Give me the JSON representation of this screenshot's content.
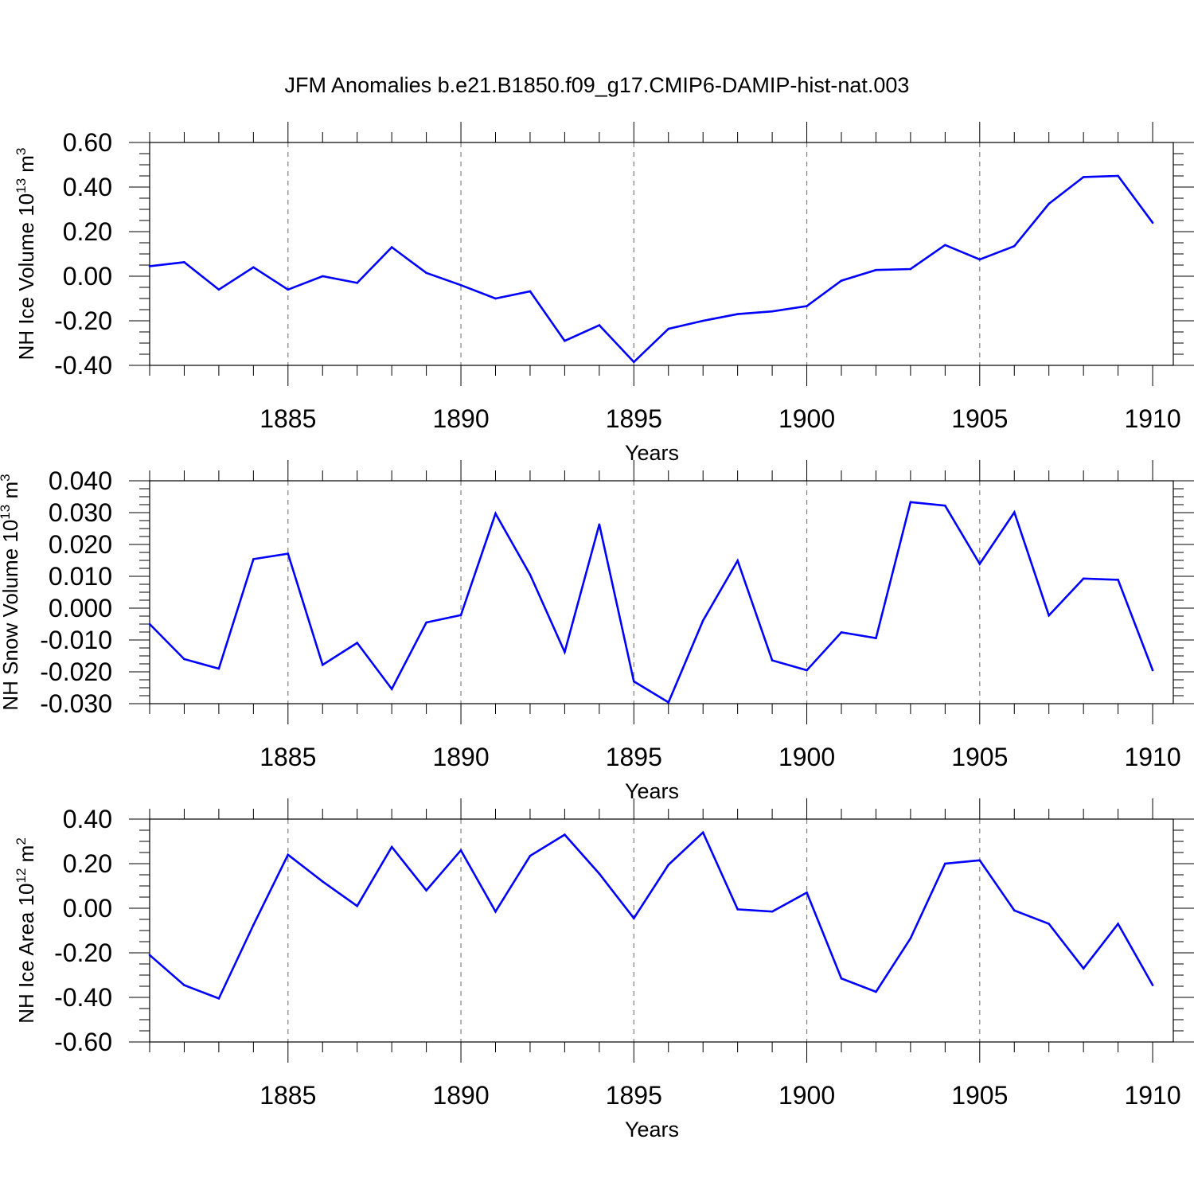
{
  "title": "JFM Anomalies b.e21.B1850.f09_g17.CMIP6-DAMIP-hist-nat.003",
  "colors": {
    "line": "#0000ff",
    "axis": "#000000",
    "grid": "#808080"
  },
  "chart_data": [
    {
      "type": "line",
      "ylabel": {
        "main": "NH Ice Volume 10",
        "exponent": "13",
        "unit": " m",
        "unit_exponent": "3"
      },
      "xlabel": "Years",
      "xlim": [
        1881,
        1910
      ],
      "ylim": [
        -0.4,
        0.6
      ],
      "yticks": [
        -0.4,
        -0.2,
        0.0,
        0.2,
        0.4,
        0.6
      ],
      "ytick_labels": [
        "-0.40",
        "-0.20",
        "0.00",
        "0.20",
        "0.40",
        "0.60"
      ],
      "xticks": [
        1885,
        1890,
        1895,
        1900,
        1905,
        1910
      ],
      "xtick_labels": [
        "1885",
        "1890",
        "1895",
        "1900",
        "1905",
        "1910"
      ],
      "grid": "vertical dashed at major x ticks",
      "x": [
        1881,
        1882,
        1883,
        1884,
        1885,
        1886,
        1887,
        1888,
        1889,
        1890,
        1891,
        1892,
        1893,
        1894,
        1895,
        1896,
        1897,
        1898,
        1899,
        1900,
        1901,
        1902,
        1903,
        1904,
        1905,
        1906,
        1907,
        1908,
        1909,
        1910
      ],
      "values": [
        0.045,
        0.063,
        -0.06,
        0.04,
        -0.06,
        0.0,
        -0.03,
        0.13,
        0.015,
        -0.04,
        -0.1,
        -0.068,
        -0.29,
        -0.22,
        -0.385,
        -0.236,
        -0.2,
        -0.17,
        -0.158,
        -0.134,
        -0.02,
        0.028,
        0.032,
        0.14,
        0.075,
        0.135,
        0.325,
        0.445,
        0.45,
        0.24
      ]
    },
    {
      "type": "line",
      "ylabel": {
        "main": "NH Snow Volume 10",
        "exponent": "13",
        "unit": " m",
        "unit_exponent": "3"
      },
      "xlabel": "Years",
      "xlim": [
        1881,
        1910
      ],
      "ylim": [
        -0.03,
        0.04
      ],
      "yticks": [
        -0.03,
        -0.02,
        -0.01,
        0.0,
        0.01,
        0.02,
        0.03,
        0.04
      ],
      "ytick_labels": [
        "-0.030",
        "-0.020",
        "-0.010",
        "0.000",
        "0.010",
        "0.020",
        "0.030",
        "0.040"
      ],
      "xticks": [
        1885,
        1890,
        1895,
        1900,
        1905,
        1910
      ],
      "xtick_labels": [
        "1885",
        "1890",
        "1895",
        "1900",
        "1905",
        "1910"
      ],
      "grid": "vertical dashed at major x ticks",
      "x": [
        1881,
        1882,
        1883,
        1884,
        1885,
        1886,
        1887,
        1888,
        1889,
        1890,
        1891,
        1892,
        1893,
        1894,
        1895,
        1896,
        1897,
        1898,
        1899,
        1900,
        1901,
        1902,
        1903,
        1904,
        1905,
        1906,
        1907,
        1908,
        1909,
        1910
      ],
      "values": [
        -0.005,
        -0.016,
        -0.019,
        0.0154,
        0.0171,
        -0.0178,
        -0.0109,
        -0.0254,
        -0.0045,
        -0.0022,
        0.0297,
        0.0105,
        -0.0138,
        0.0263,
        -0.023,
        -0.0296,
        -0.0039,
        0.0149,
        -0.0164,
        -0.0195,
        -0.0076,
        -0.0094,
        0.0333,
        0.0322,
        0.0139,
        0.0301,
        -0.0023,
        0.0093,
        0.0089,
        -0.0195
      ]
    },
    {
      "type": "line",
      "ylabel": {
        "main": "NH Ice Area 10",
        "exponent": "12",
        "unit": " m",
        "unit_exponent": "2"
      },
      "xlabel": "Years",
      "xlim": [
        1881,
        1910
      ],
      "ylim": [
        -0.6,
        0.4
      ],
      "yticks": [
        -0.6,
        -0.4,
        -0.2,
        0.0,
        0.2,
        0.4
      ],
      "ytick_labels": [
        "-0.60",
        "-0.40",
        "-0.20",
        "0.00",
        "0.20",
        "0.40"
      ],
      "xticks": [
        1885,
        1890,
        1895,
        1900,
        1905,
        1910
      ],
      "xtick_labels": [
        "1885",
        "1890",
        "1895",
        "1900",
        "1905",
        "1910"
      ],
      "grid": "vertical dashed at major x ticks",
      "x": [
        1881,
        1882,
        1883,
        1884,
        1885,
        1886,
        1887,
        1888,
        1889,
        1890,
        1891,
        1892,
        1893,
        1894,
        1895,
        1896,
        1897,
        1898,
        1899,
        1900,
        1901,
        1902,
        1903,
        1904,
        1905,
        1906,
        1907,
        1908,
        1909,
        1910
      ],
      "values": [
        -0.21,
        -0.345,
        -0.405,
        -0.075,
        0.24,
        0.12,
        0.01,
        0.275,
        0.08,
        0.26,
        -0.015,
        0.235,
        0.33,
        0.155,
        -0.045,
        0.195,
        0.34,
        -0.005,
        -0.015,
        0.07,
        -0.315,
        -0.375,
        -0.135,
        0.2,
        0.215,
        -0.01,
        -0.07,
        -0.27,
        -0.07,
        -0.345
      ]
    }
  ]
}
